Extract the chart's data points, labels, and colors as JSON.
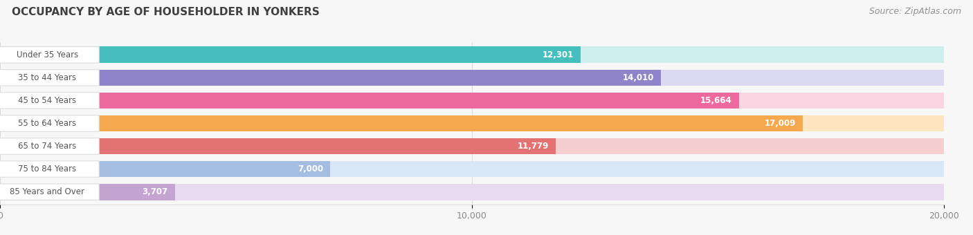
{
  "title": "OCCUPANCY BY AGE OF HOUSEHOLDER IN YONKERS",
  "source": "Source: ZipAtlas.com",
  "categories": [
    "Under 35 Years",
    "35 to 44 Years",
    "45 to 54 Years",
    "55 to 64 Years",
    "65 to 74 Years",
    "75 to 84 Years",
    "85 Years and Over"
  ],
  "values": [
    12301,
    14010,
    15664,
    17009,
    11779,
    7000,
    3707
  ],
  "bar_colors": [
    "#45bfbe",
    "#8f84cc",
    "#ee6a9e",
    "#f5a84d",
    "#e57272",
    "#a4bde0",
    "#c5a4d2"
  ],
  "bar_background_colors": [
    "#ceeeed",
    "#dbd8f2",
    "#f9d5e2",
    "#fde5c0",
    "#f5cfcf",
    "#d8e6f5",
    "#eadaf0"
  ],
  "xlim": [
    0,
    20000
  ],
  "xticks": [
    0,
    10000,
    20000
  ],
  "title_color": "#404040",
  "source_color": "#909090",
  "label_color_inside": "#ffffff",
  "label_color_outside": "#888888",
  "background_color": "#f7f7f7",
  "bar_height": 0.72,
  "title_fontsize": 11,
  "source_fontsize": 9,
  "label_fontsize": 8.5,
  "tick_fontsize": 9,
  "category_fontsize": 8.5
}
